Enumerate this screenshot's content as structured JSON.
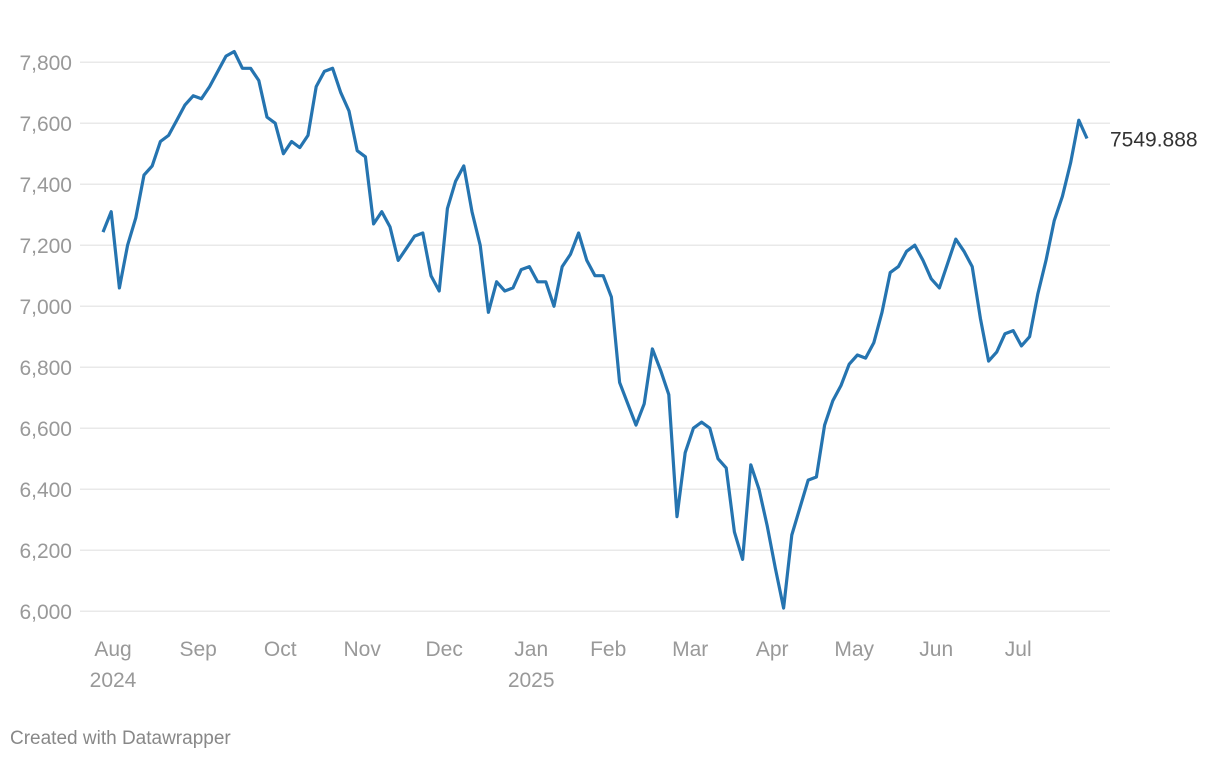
{
  "chart_data": {
    "type": "line",
    "credit": "Created with Datawrapper",
    "categories": [
      "Aug 2024",
      null,
      null,
      null,
      null,
      null,
      null,
      null,
      null,
      null,
      null,
      "Sep",
      null,
      null,
      null,
      null,
      null,
      null,
      null,
      null,
      null,
      "Oct",
      null,
      null,
      null,
      null,
      null,
      null,
      null,
      null,
      null,
      "Nov",
      null,
      null,
      null,
      null,
      null,
      null,
      null,
      null,
      null,
      "Dec",
      null,
      null,
      null,
      null,
      null,
      null,
      null,
      null,
      null,
      "Jan 2025",
      null,
      null,
      null,
      null,
      null,
      null,
      null,
      null,
      null,
      "Feb",
      null,
      null,
      null,
      null,
      null,
      null,
      null,
      null,
      null,
      "Mar",
      null,
      null,
      null,
      null,
      null,
      null,
      null,
      null,
      null,
      "Apr",
      null,
      null,
      null,
      null,
      null,
      null,
      null,
      null,
      null,
      "May",
      null,
      null,
      null,
      null,
      null,
      null,
      null,
      null,
      null,
      "Jun",
      null,
      null,
      null,
      null,
      null,
      null,
      null,
      null,
      null,
      "Jul",
      null,
      null,
      null,
      null,
      null,
      null,
      null,
      null,
      null
    ],
    "values": [
      7243,
      7310,
      7060,
      7200,
      7290,
      7430,
      7460,
      7540,
      7560,
      7610,
      7660,
      7690,
      7680,
      7720,
      7770,
      7820,
      7835,
      7780,
      7780,
      7740,
      7620,
      7600,
      7500,
      7540,
      7520,
      7560,
      7720,
      7770,
      7780,
      7700,
      7640,
      7510,
      7490,
      7270,
      7310,
      7260,
      7150,
      7190,
      7230,
      7240,
      7100,
      7050,
      7320,
      7410,
      7460,
      7310,
      7200,
      6980,
      7080,
      7050,
      7060,
      7120,
      7130,
      7080,
      7080,
      7000,
      7130,
      7170,
      7240,
      7150,
      7100,
      7100,
      7030,
      6750,
      6680,
      6610,
      6680,
      6860,
      6790,
      6710,
      6310,
      6520,
      6600,
      6620,
      6600,
      6500,
      6470,
      6260,
      6170,
      6480,
      6400,
      6280,
      6140,
      6010,
      6250,
      6340,
      6430,
      6440,
      6610,
      6690,
      6740,
      6810,
      6840,
      6830,
      6880,
      6980,
      7110,
      7130,
      7180,
      7200,
      7150,
      7090,
      7060,
      7140,
      7220,
      7180,
      7130,
      6960,
      6820,
      6850,
      6910,
      6920,
      6870,
      6900,
      7040,
      7150,
      7280,
      7360,
      7470,
      7610,
      7549.888
    ],
    "color": "#2574b0",
    "ylim": [
      5940,
      7920
    ],
    "yticks": [
      {
        "value": 6000,
        "label": "6,000"
      },
      {
        "value": 6200,
        "label": "6,200"
      },
      {
        "value": 6400,
        "label": "6,400"
      },
      {
        "value": 6600,
        "label": "6,600"
      },
      {
        "value": 6800,
        "label": "6,800"
      },
      {
        "value": 7000,
        "label": "7,000"
      },
      {
        "value": 7200,
        "label": "7,200"
      },
      {
        "value": 7400,
        "label": "7,400"
      },
      {
        "value": 7600,
        "label": "7,600"
      },
      {
        "value": 7800,
        "label": "7,800"
      }
    ],
    "grid": true
  }
}
